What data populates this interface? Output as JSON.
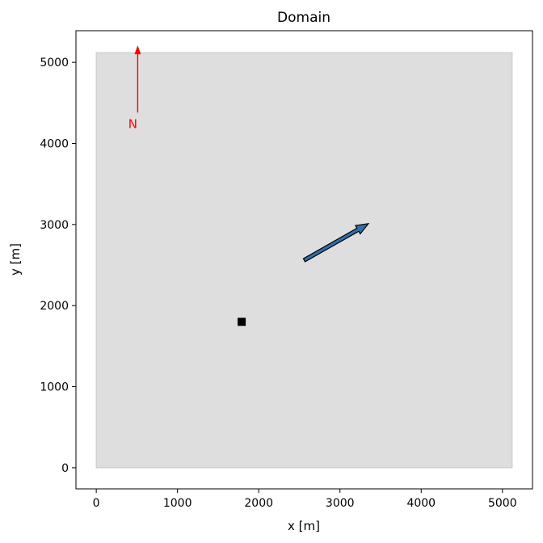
{
  "chart_data": {
    "type": "scatter",
    "title": "Domain",
    "xlabel": "x [m]",
    "ylabel": "y [m]",
    "xlim": [
      -250,
      5370
    ],
    "ylim": [
      -260,
      5390
    ],
    "xticks": [
      0,
      1000,
      2000,
      3000,
      4000,
      5000
    ],
    "yticks": [
      0,
      1000,
      2000,
      3000,
      4000,
      5000
    ],
    "grid": false,
    "domain_rect": {
      "x0": 0,
      "y0": 0,
      "x1": 5120,
      "y1": 5120,
      "fill": "#dedede",
      "edge": "#c8c8c8"
    },
    "marker": {
      "x": 1790,
      "y": 1800,
      "shape": "square",
      "color": "#000000"
    },
    "wind_arrow": {
      "x0": 2560,
      "y0": 2560,
      "x1": 3350,
      "y1": 3010,
      "fill": "#2f6fad",
      "edge": "#000000"
    },
    "north_arrow": {
      "label": "N",
      "x": 510,
      "y_start": 4380,
      "y_end": 5210,
      "color": "#ff0000"
    }
  }
}
